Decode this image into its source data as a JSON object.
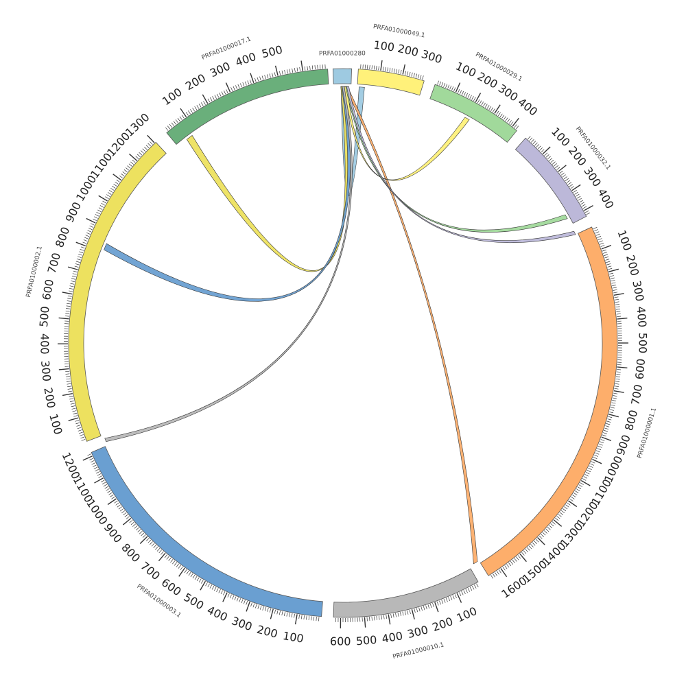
{
  "diagram": {
    "type": "circos",
    "ring": {
      "inner_radius": 378,
      "outer_radius": 400
    },
    "contigs": [
      {
        "id": "c280",
        "name": "PRFA01000280",
        "color": "#9ecae1",
        "start_deg": -2.1,
        "end_deg": 1.8,
        "ticks": []
      },
      {
        "id": "c49",
        "name": "PRFA01000049.1",
        "color": "#fff17a",
        "start_deg": 3.2,
        "end_deg": 17.2,
        "ticks": [
          100,
          200,
          300
        ],
        "bp_per_deg": 21.4
      },
      {
        "id": "c29",
        "name": "PRFA01000029.1",
        "color": "#a1d99b",
        "start_deg": 19.6,
        "end_deg": 39.3,
        "ticks": [
          100,
          200,
          300,
          400
        ],
        "bp_per_deg": 21.7
      },
      {
        "id": "c32",
        "name": "PRFA01000032.1",
        "color": "#bcb8d9",
        "start_deg": 41.7,
        "end_deg": 62.5,
        "ticks": [
          100,
          200,
          300,
          400
        ],
        "bp_per_deg": 20.5
      },
      {
        "id": "c01",
        "name": "PRFA01000001.1",
        "color": "#fdae6b",
        "start_deg": 65.0,
        "end_deg": 148.0,
        "ticks": [
          100,
          200,
          300,
          400,
          500,
          600,
          700,
          800,
          900,
          1000,
          1100,
          1200,
          1300,
          1400,
          1500,
          1600
        ],
        "bp_per_deg": 20.0
      },
      {
        "id": "c10",
        "name": "PRFA01000010.1",
        "color": "#b8b8b8",
        "start_deg": 150.5,
        "end_deg": 182.0,
        "ticks": [
          100,
          200,
          300,
          400,
          500,
          600
        ],
        "bp_per_deg": 20.0
      },
      {
        "id": "c03",
        "name": "PRFA01000003.1",
        "color": "#6a9fd1",
        "start_deg": 184.5,
        "end_deg": 246.5,
        "ticks": [
          100,
          200,
          300,
          400,
          500,
          600,
          700,
          800,
          900,
          1000,
          1100,
          1200
        ],
        "bp_per_deg": 19.6
      },
      {
        "id": "c02",
        "name": "PRFA01000002.1",
        "color": "#ede15f",
        "start_deg": 249.0,
        "end_deg": 317.0,
        "ticks": [
          100,
          200,
          300,
          400,
          500,
          600,
          700,
          800,
          900,
          1000,
          1100,
          1200,
          1300
        ],
        "bp_per_deg": 19.2
      },
      {
        "id": "c17",
        "name": "PRFA01000017.1",
        "color": "#6aaf7b",
        "start_deg": 320.0,
        "end_deg": 356.8,
        "ticks": [
          100,
          200,
          300,
          400,
          500
        ],
        "bp_per_deg": 19.0
      }
    ],
    "links": [
      {
        "color": "#9ecae1",
        "a": [
          -0.4,
          0.6
        ],
        "b": [
          3.6,
          4.8
        ],
        "ctrl": 0.15
      },
      {
        "color": "#ede15f",
        "a": [
          -0.5,
          0.4
        ],
        "b": [
          322.5,
          324.0
        ],
        "ctrl": 0.35
      },
      {
        "color": "#6a9fd1",
        "a": [
          -0.3,
          0.5
        ],
        "b": [
          291.3,
          292.8
        ],
        "ctrl": 0.3
      },
      {
        "color": "#b8b8b8",
        "a": [
          -0.2,
          0.3
        ],
        "b": [
          247.4,
          248.2
        ],
        "ctrl": 0.25
      },
      {
        "color": "#fdae6b",
        "a": [
          0.4,
          1.0
        ],
        "b": [
          148.4,
          149.4
        ],
        "ctrl": 0.45
      },
      {
        "color": "#fff17a",
        "a": [
          0.3,
          0.9
        ],
        "b": [
          28.4,
          29.5
        ],
        "ctrl": 0.35
      },
      {
        "color": "#a1d99b",
        "a": [
          0.6,
          1.1
        ],
        "b": [
          60.0,
          61.0
        ],
        "ctrl": 0.3
      },
      {
        "color": "#bcb8d9",
        "a": [
          0.8,
          1.3
        ],
        "b": [
          64.2,
          65.0
        ],
        "ctrl": 0.3
      }
    ]
  }
}
